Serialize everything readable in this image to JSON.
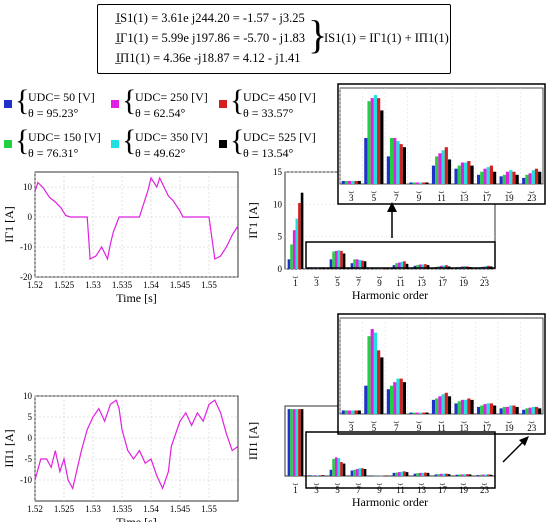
{
  "equations": [
    "I̲S1(1) = 3.61e j244.20 = -1.57 - j3.25",
    "I̲Γ1(1) = 5.99e j197.86 = -5.70 - j1.83",
    "I̲Π1(1) = 4.36e -j18.87 = 4.12 - j1.41"
  ],
  "equation_sum": "IS1(1) = IΓ1(1) + IΠ1(1)",
  "legend": [
    {
      "udc_label": "UDC= 50  [V]",
      "theta_label": "θ  = 95.23°",
      "color": "#2030c8"
    },
    {
      "udc_label": "UDC= 250 [V]",
      "theta_label": "θ  = 62.54°",
      "color": "#e020e0"
    },
    {
      "udc_label": "UDC= 450 [V]",
      "theta_label": "θ  = 33.57°",
      "color": "#d42020"
    },
    {
      "udc_label": "UDC= 150 [V]",
      "theta_label": "θ  = 76.31°",
      "color": "#20d040"
    },
    {
      "udc_label": "UDC= 350 [V]",
      "theta_label": "θ  = 49.62°",
      "color": "#20e0e0"
    },
    {
      "udc_label": "UDC= 525 [V]",
      "theta_label": "θ  = 13.54°",
      "color": "#000000"
    }
  ],
  "chart_data": [
    {
      "type": "line",
      "ylabel": "IΓ1 [A]",
      "xlabel": "Time [s]",
      "xlim": [
        1.52,
        1.555
      ],
      "ylim": [
        -20,
        15
      ],
      "xticks": [
        "1.52",
        "1.525",
        "1.53",
        "1.535",
        "1.54",
        "1.545",
        "1.55"
      ],
      "yticks": [
        "-20",
        "-10",
        "0",
        "10"
      ],
      "line_color": "#e020e0",
      "x": [
        1.52,
        1.5205,
        1.5215,
        1.5225,
        1.5235,
        1.5245,
        1.5253,
        1.5261,
        1.5268,
        1.5275,
        1.5285,
        1.529,
        1.5295,
        1.5305,
        1.5315,
        1.532,
        1.5325,
        1.533,
        1.5335,
        1.5345,
        1.5355,
        1.5365,
        1.5375,
        1.538,
        1.5395,
        1.54,
        1.541,
        1.5415,
        1.542,
        1.543,
        1.5438,
        1.545,
        1.5455,
        1.5465,
        1.548,
        1.549,
        1.55,
        1.551,
        1.552,
        1.553,
        1.554,
        1.555
      ],
      "y": [
        8.5,
        11.5,
        9.5,
        6.5,
        5,
        3,
        0.5,
        0,
        0,
        0,
        0,
        0,
        -14,
        -13,
        -10,
        -12,
        -14,
        -9,
        -5,
        0,
        0,
        0,
        0,
        0,
        9,
        13,
        10,
        13,
        11,
        7,
        5.5,
        2,
        0,
        0,
        0,
        0,
        0,
        -14,
        -13,
        -10,
        -6,
        -3
      ]
    },
    {
      "type": "bar",
      "ylabel": "IΓ1 [A]",
      "xlabel": "Harmonic order",
      "categories": [
        "1",
        "3",
        "5",
        "7",
        "9",
        "11",
        "13",
        "17",
        "19",
        "23"
      ],
      "ylim": [
        0,
        15
      ],
      "yticks": [
        "0",
        "5",
        "10",
        "15"
      ],
      "series": [
        {
          "name": "UDC= 50  [V]",
          "values": [
            1.5,
            0.1,
            1.5,
            0.9,
            0.05,
            0.6,
            0.5,
            0.3,
            0.25,
            0.2
          ]
        },
        {
          "name": "UDC= 150 [V]",
          "values": [
            3.8,
            0.1,
            2.7,
            1.5,
            0.05,
            0.9,
            0.6,
            0.4,
            0.3,
            0.3
          ]
        },
        {
          "name": "UDC= 250 [V]",
          "values": [
            6.0,
            0.1,
            2.8,
            1.5,
            0.05,
            1.0,
            0.7,
            0.5,
            0.4,
            0.35
          ]
        },
        {
          "name": "UDC= 350 [V]",
          "values": [
            7.8,
            0.1,
            2.9,
            1.4,
            0.05,
            1.1,
            0.7,
            0.55,
            0.45,
            0.45
          ]
        },
        {
          "name": "UDC= 450 [V]",
          "values": [
            10.2,
            0.1,
            2.8,
            1.3,
            0.05,
            1.2,
            0.75,
            0.6,
            0.4,
            0.5
          ]
        },
        {
          "name": "UDC= 525 [V]",
          "values": [
            11.8,
            0.1,
            2.4,
            1.2,
            0.05,
            0.8,
            0.6,
            0.4,
            0.3,
            0.4
          ]
        }
      ]
    },
    {
      "type": "line",
      "ylabel": "IΠ1 [A]",
      "xlabel": "Time [s]",
      "xlim": [
        1.52,
        1.555
      ],
      "ylim": [
        -15,
        10
      ],
      "xticks": [
        "1.52",
        "1.525",
        "1.53",
        "1.535",
        "1.54",
        "1.545",
        "1.55"
      ],
      "yticks": [
        "-10",
        "-5",
        "0",
        "5",
        "10"
      ],
      "line_color": "#e020e0",
      "x": [
        1.52,
        1.521,
        1.522,
        1.5228,
        1.5235,
        1.5243,
        1.525,
        1.5257,
        1.5265,
        1.527,
        1.528,
        1.529,
        1.53,
        1.531,
        1.532,
        1.5325,
        1.533,
        1.534,
        1.5345,
        1.535,
        1.536,
        1.537,
        1.538,
        1.539,
        1.54,
        1.541,
        1.542,
        1.543,
        1.5435,
        1.545,
        1.546,
        1.547,
        1.548,
        1.549,
        1.55,
        1.551,
        1.552,
        1.553,
        1.554,
        1.555
      ],
      "y": [
        -10,
        -5,
        -5,
        -7,
        -3,
        -8,
        -5,
        -10,
        -12,
        -9,
        -3,
        2,
        5,
        7,
        4,
        6,
        8,
        9,
        7,
        2,
        -3,
        -5,
        -3,
        -6,
        -5,
        -9,
        -12,
        -8,
        -2,
        4,
        6,
        3,
        6,
        4,
        8,
        9,
        6,
        1,
        -3,
        -2
      ]
    },
    {
      "type": "bar",
      "ylabel": "IΠ1 [A]",
      "xlabel": "Harmonic order",
      "categories": [
        "1",
        "3",
        "5",
        "7",
        "9",
        "11",
        "13",
        "17",
        "19",
        "23"
      ],
      "ylim": [
        0,
        4.5
      ],
      "series": [
        {
          "name": "UDC= 50  [V]",
          "values": [
            4.3,
            0.05,
            0.4,
            0.35,
            0.02,
            0.2,
            0.15,
            0.1,
            0.08,
            0.06
          ]
        },
        {
          "name": "UDC= 150 [V]",
          "values": [
            4.3,
            0.05,
            1.1,
            0.4,
            0.02,
            0.22,
            0.18,
            0.12,
            0.1,
            0.08
          ]
        },
        {
          "name": "UDC= 250 [V]",
          "values": [
            4.3,
            0.05,
            1.2,
            0.45,
            0.02,
            0.25,
            0.2,
            0.14,
            0.1,
            0.09
          ]
        },
        {
          "name": "UDC= 350 [V]",
          "values": [
            4.3,
            0.05,
            1.15,
            0.5,
            0.02,
            0.28,
            0.2,
            0.15,
            0.12,
            0.1
          ]
        },
        {
          "name": "UDC= 450 [V]",
          "values": [
            4.3,
            0.05,
            0.9,
            0.5,
            0.02,
            0.3,
            0.22,
            0.15,
            0.12,
            0.1
          ]
        },
        {
          "name": "UDC= 525 [V]",
          "values": [
            4.3,
            0.05,
            0.8,
            0.45,
            0.02,
            0.25,
            0.2,
            0.12,
            0.1,
            0.08
          ]
        }
      ]
    }
  ]
}
